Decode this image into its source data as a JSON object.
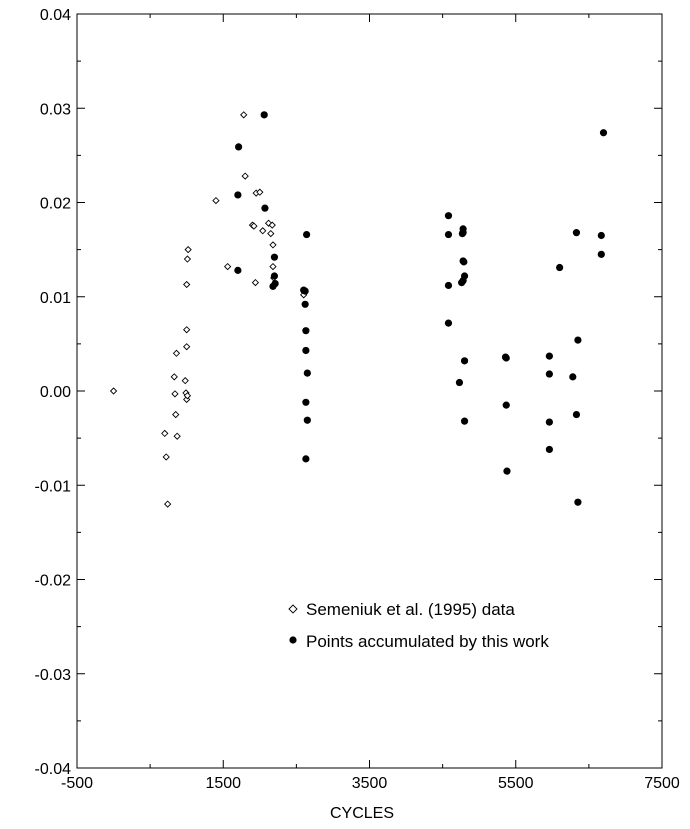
{
  "chart_data": {
    "type": "scatter",
    "title": "",
    "xlabel": "CYCLES",
    "ylabel": "",
    "xlim": [
      -500,
      7500
    ],
    "ylim": [
      -0.04,
      0.04
    ],
    "xticks": [
      -500,
      1500,
      3500,
      5500,
      7500
    ],
    "xtick_labels": [
      "-500",
      "1500",
      "3500",
      "5500",
      "7500"
    ],
    "yticks": [
      -0.04,
      -0.03,
      -0.02,
      -0.01,
      0.0,
      0.01,
      0.02,
      0.03,
      0.04
    ],
    "ytick_labels": [
      "-0.04",
      "-0.03",
      "-0.02",
      "-0.01",
      "0.00",
      "0.01",
      "0.02",
      "0.03",
      "0.04"
    ],
    "grid": false,
    "legend_position": "bottom-right",
    "series": [
      {
        "name": "Semeniuk et al. (1995) data",
        "marker": "open-diamond",
        "color": "#000000",
        "points": [
          [
            0,
            0.0
          ],
          [
            700,
            -0.0045
          ],
          [
            720,
            -0.007
          ],
          [
            740,
            -0.012
          ],
          [
            830,
            0.0015
          ],
          [
            840,
            -0.0003
          ],
          [
            850,
            -0.0025
          ],
          [
            860,
            0.004
          ],
          [
            870,
            -0.0048
          ],
          [
            980,
            0.0011
          ],
          [
            990,
            -0.0002
          ],
          [
            1000,
            -0.0009
          ],
          [
            1000,
            0.0047
          ],
          [
            1000,
            0.0065
          ],
          [
            1000,
            0.0113
          ],
          [
            1010,
            0.014
          ],
          [
            1020,
            0.015
          ],
          [
            1010,
            -0.0005
          ],
          [
            1400,
            0.0202
          ],
          [
            1560,
            0.0132
          ],
          [
            1780,
            0.0293
          ],
          [
            1800,
            0.0228
          ],
          [
            1900,
            0.0176
          ],
          [
            1920,
            0.0175
          ],
          [
            1940,
            0.0115
          ],
          [
            1950,
            0.021
          ],
          [
            2000,
            0.0211
          ],
          [
            2040,
            0.017
          ],
          [
            2120,
            0.0178
          ],
          [
            2150,
            0.0167
          ],
          [
            2170,
            0.0176
          ],
          [
            2180,
            0.0155
          ],
          [
            2180,
            0.0132
          ],
          [
            2190,
            0.012
          ],
          [
            2600,
            0.0102
          ]
        ]
      },
      {
        "name": "Points accumulated by this work",
        "marker": "filled-circle",
        "color": "#000000",
        "points": [
          [
            1700,
            0.0128
          ],
          [
            1700,
            0.0208
          ],
          [
            1710,
            0.0259
          ],
          [
            2060,
            0.0293
          ],
          [
            2070,
            0.0194
          ],
          [
            2180,
            0.0111
          ],
          [
            2200,
            0.0122
          ],
          [
            2200,
            0.0142
          ],
          [
            2210,
            0.0114
          ],
          [
            2600,
            0.0107
          ],
          [
            2620,
            0.0106
          ],
          [
            2620,
            0.0092
          ],
          [
            2630,
            0.0064
          ],
          [
            2630,
            0.0043
          ],
          [
            2630,
            -0.0012
          ],
          [
            2630,
            -0.0072
          ],
          [
            2640,
            0.0166
          ],
          [
            2650,
            0.0019
          ],
          [
            2650,
            -0.0031
          ],
          [
            4580,
            0.0186
          ],
          [
            4580,
            0.0166
          ],
          [
            4580,
            0.0112
          ],
          [
            4580,
            0.0072
          ],
          [
            4730,
            0.0009
          ],
          [
            4760,
            0.0115
          ],
          [
            4770,
            0.0167
          ],
          [
            4780,
            0.0172
          ],
          [
            4780,
            0.0168
          ],
          [
            4780,
            0.0138
          ],
          [
            4780,
            0.0117
          ],
          [
            4790,
            0.0137
          ],
          [
            4800,
            0.0122
          ],
          [
            4800,
            0.0032
          ],
          [
            4800,
            -0.0032
          ],
          [
            5360,
            0.0036
          ],
          [
            5370,
            0.0035
          ],
          [
            5370,
            -0.0015
          ],
          [
            5380,
            -0.0085
          ],
          [
            5960,
            0.0037
          ],
          [
            5960,
            0.0018
          ],
          [
            5960,
            -0.0033
          ],
          [
            5960,
            -0.0062
          ],
          [
            6100,
            0.0131
          ],
          [
            6280,
            0.0015
          ],
          [
            6330,
            0.0168
          ],
          [
            6330,
            -0.0025
          ],
          [
            6350,
            0.0054
          ],
          [
            6350,
            -0.0118
          ],
          [
            6670,
            0.0165
          ],
          [
            6670,
            0.0145
          ],
          [
            6700,
            0.0274
          ]
        ]
      }
    ]
  }
}
